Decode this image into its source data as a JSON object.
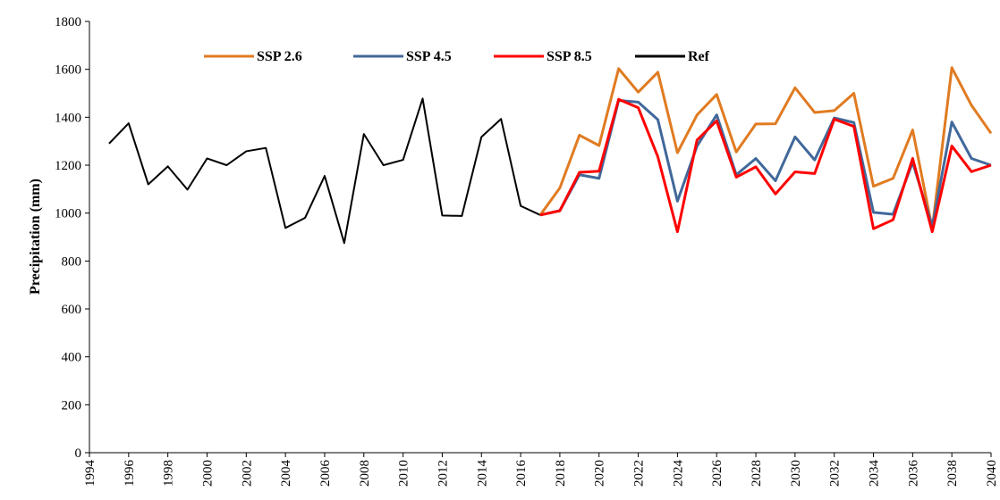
{
  "chart_data": {
    "type": "line",
    "y_label": "Precipitation (mm)",
    "xlim": [
      1994,
      2040
    ],
    "xticks": [
      1994,
      1996,
      1998,
      2000,
      2002,
      2004,
      2006,
      2008,
      2010,
      2012,
      2014,
      2016,
      2018,
      2020,
      2022,
      2024,
      2026,
      2028,
      2030,
      2032,
      2034,
      2036,
      2038,
      2040
    ],
    "ylim": [
      0,
      1800
    ],
    "yticks": [
      0,
      200,
      400,
      600,
      800,
      1000,
      1200,
      1400,
      1600,
      1800
    ],
    "legend": "top",
    "series": [
      {
        "name": "Ref",
        "color": "#000000",
        "x": [
          1995,
          1996,
          1997,
          1998,
          1999,
          2000,
          2001,
          2002,
          2003,
          2004,
          2005,
          2006,
          2007,
          2008,
          2009,
          2010,
          2011,
          2012,
          2013,
          2014,
          2015,
          2016,
          2017
        ],
        "values": [
          1290,
          1375,
          1120,
          1195,
          1098,
          1228,
          1200,
          1258,
          1272,
          938,
          980,
          1155,
          875,
          1330,
          1200,
          1222,
          1478,
          990,
          988,
          1318,
          1393,
          1030,
          992
        ]
      },
      {
        "name": "SSP 2.6",
        "color": "#E07B21",
        "x": [
          2017,
          2018,
          2019,
          2020,
          2021,
          2022,
          2023,
          2024,
          2025,
          2026,
          2027,
          2028,
          2029,
          2030,
          2031,
          2032,
          2033,
          2034,
          2035,
          2036,
          2037,
          2038,
          2039,
          2040
        ],
        "values": [
          992,
          1105,
          1325,
          1282,
          1603,
          1505,
          1588,
          1252,
          1410,
          1495,
          1255,
          1372,
          1373,
          1523,
          1420,
          1428,
          1500,
          1112,
          1145,
          1347,
          935,
          1607,
          1450,
          1333
        ]
      },
      {
        "name": "SSP 4.5",
        "color": "#41689A",
        "x": [
          2017,
          2018,
          2019,
          2020,
          2021,
          2022,
          2023,
          2024,
          2025,
          2026,
          2027,
          2028,
          2029,
          2030,
          2031,
          2032,
          2033,
          2034,
          2035,
          2036,
          2037,
          2038,
          2039,
          2040
        ],
        "values": [
          992,
          1010,
          1160,
          1145,
          1470,
          1463,
          1390,
          1050,
          1280,
          1410,
          1160,
          1228,
          1135,
          1318,
          1222,
          1397,
          1378,
          1003,
          995,
          1212,
          945,
          1380,
          1228,
          1200
        ]
      },
      {
        "name": "SSP 8.5",
        "color": "#FF0000",
        "x": [
          2017,
          2018,
          2019,
          2020,
          2021,
          2022,
          2023,
          2024,
          2025,
          2026,
          2027,
          2028,
          2029,
          2030,
          2031,
          2032,
          2033,
          2034,
          2035,
          2036,
          2037,
          2038,
          2039,
          2040
        ],
        "values": [
          992,
          1010,
          1170,
          1175,
          1475,
          1440,
          1235,
          922,
          1305,
          1385,
          1150,
          1193,
          1080,
          1172,
          1165,
          1392,
          1362,
          935,
          972,
          1228,
          922,
          1280,
          1173,
          1200
        ]
      }
    ]
  }
}
